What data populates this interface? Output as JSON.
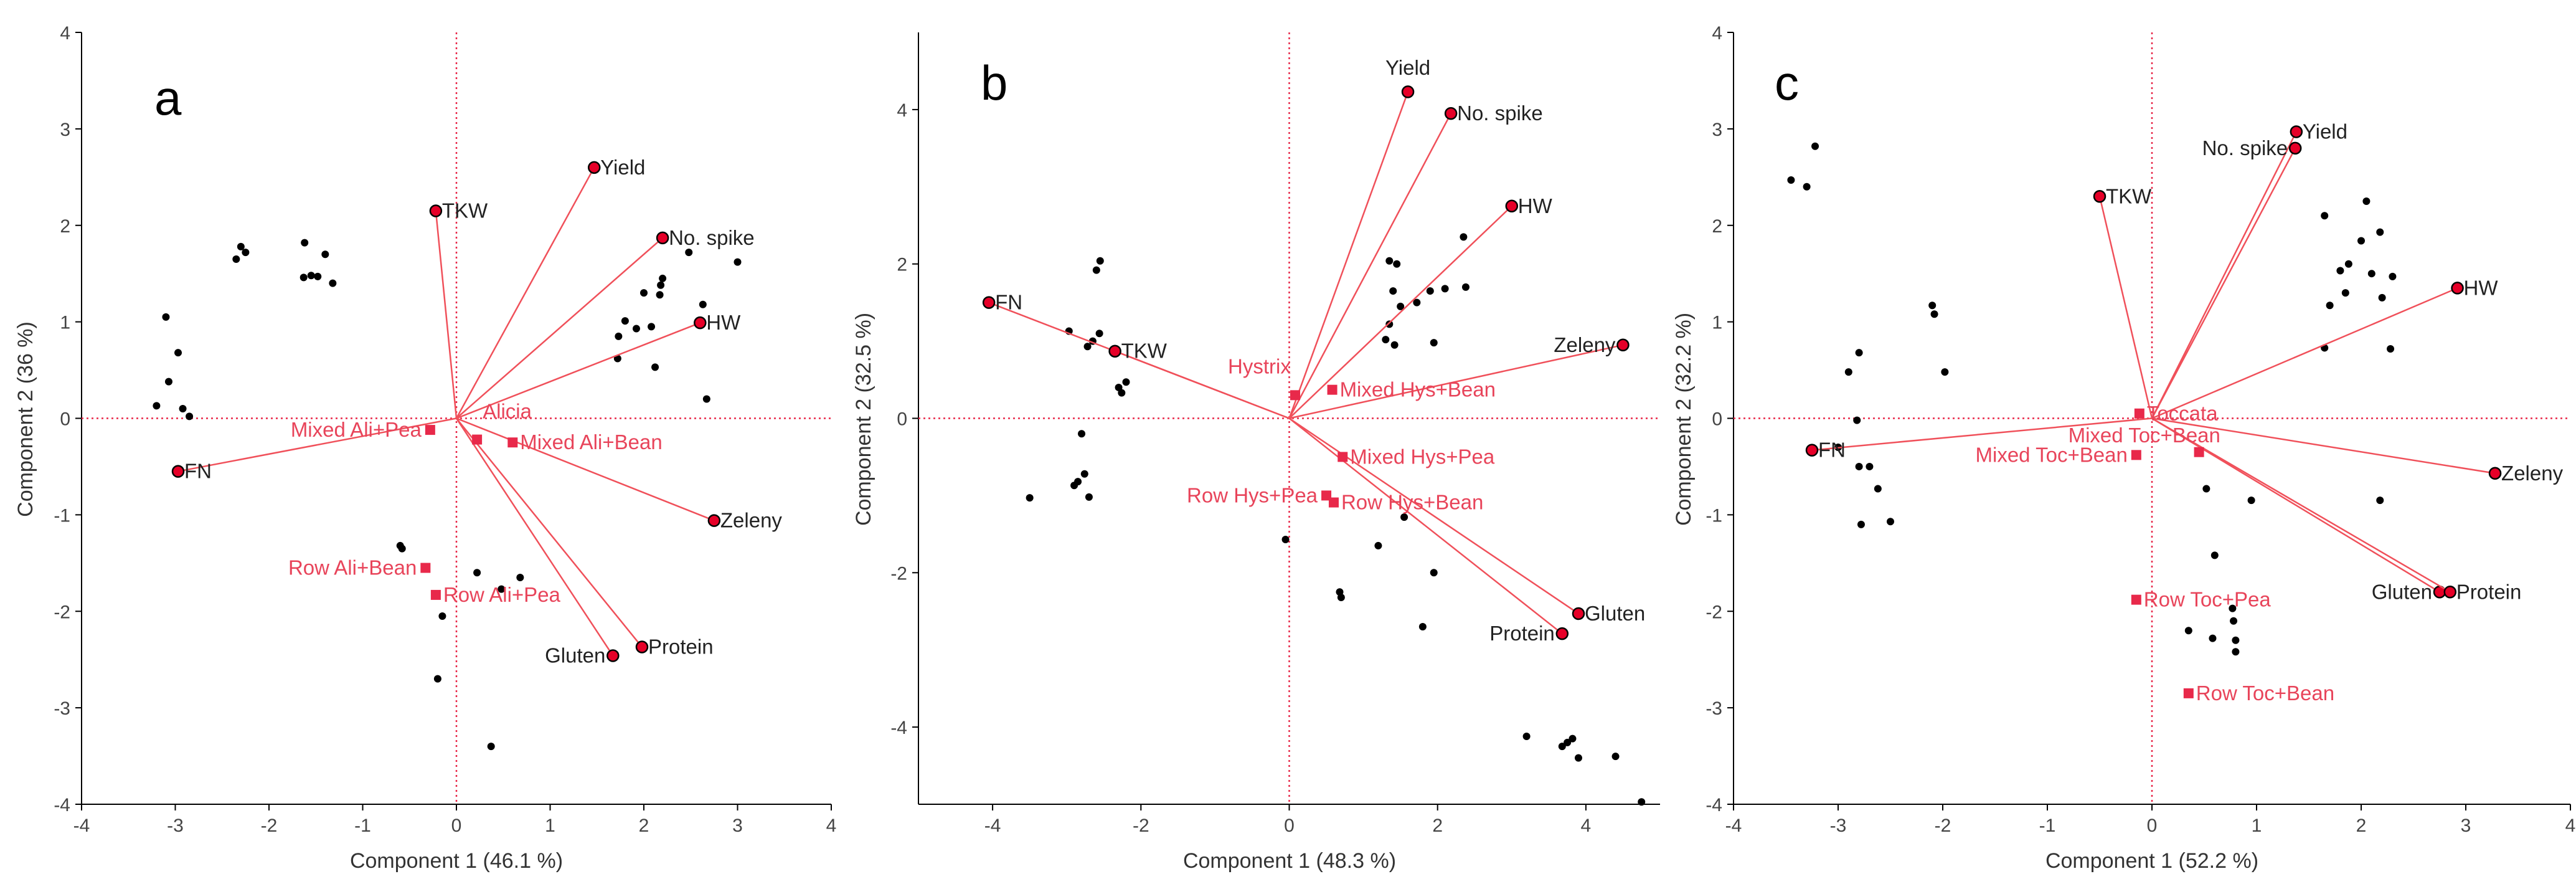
{
  "figure": {
    "panel_count": 3
  },
  "colors": {
    "vector": "#F0505A",
    "label_red": "#E8445A",
    "treatment_marker": "#E8294A",
    "point": "#000000",
    "trait_marker_fill": "#E60028",
    "axis_line": "#000000",
    "reference_line": "#E8294A",
    "text": "#333333"
  },
  "chart_data": [
    {
      "type": "scatter",
      "panel_label": "a",
      "xlabel": "Component 1  (46.1 %)",
      "ylabel": "Component 2  (36 %)",
      "xlim": [
        -4,
        4
      ],
      "ylim": [
        -4,
        4
      ],
      "xticks": [
        -4,
        -3,
        -2,
        -1,
        0,
        1,
        2,
        3,
        4
      ],
      "yticks": [
        -4,
        -3,
        -2,
        -1,
        0,
        1,
        2,
        3,
        4
      ],
      "xtick_labels": [
        "-4",
        "-3",
        "-2",
        "-1",
        "0",
        "1",
        "2",
        "3",
        "4"
      ],
      "ytick_labels": [
        "-4",
        "-3",
        "-2",
        "-1",
        "0",
        "1",
        "2",
        "3",
        "4"
      ],
      "reference_lines": {
        "x": 0,
        "y": 0
      },
      "traits": [
        {
          "name": "Yield",
          "x": 1.47,
          "y": 2.6,
          "anchor": "start"
        },
        {
          "name": "TKW",
          "x": -0.22,
          "y": 2.15,
          "anchor": "start"
        },
        {
          "name": "No. spike",
          "x": 2.2,
          "y": 1.87,
          "anchor": "start"
        },
        {
          "name": "HW",
          "x": 2.6,
          "y": 0.99,
          "anchor": "start"
        },
        {
          "name": "FN",
          "x": -2.97,
          "y": -0.55,
          "anchor": "start"
        },
        {
          "name": "Zeleny",
          "x": 2.75,
          "y": -1.06,
          "anchor": "start"
        },
        {
          "name": "Protein",
          "x": 1.98,
          "y": -2.37,
          "anchor": "start"
        },
        {
          "name": "Gluten",
          "x": 1.67,
          "y": -2.46,
          "anchor": "end"
        }
      ],
      "treatments": [
        {
          "name": "Mixed Ali+Pea",
          "x": -0.28,
          "y": -0.12,
          "anchor": "end"
        },
        {
          "name": "Alicia",
          "x": 0.22,
          "y": -0.22,
          "anchor": "start",
          "label_dx": 0.06,
          "label_dy": 0.22
        },
        {
          "name": "Mixed Ali+Bean",
          "x": 0.6,
          "y": -0.25,
          "anchor": "start"
        },
        {
          "name": "Row Ali+Bean",
          "x": -0.33,
          "y": -1.55,
          "anchor": "end"
        },
        {
          "name": "Row Ali+Pea",
          "x": -0.22,
          "y": -1.83,
          "anchor": "start"
        }
      ],
      "points": [
        [
          -3.1,
          1.05
        ],
        [
          -3.07,
          0.38
        ],
        [
          -2.97,
          0.68
        ],
        [
          -3.2,
          0.13
        ],
        [
          -2.92,
          0.1
        ],
        [
          -2.85,
          0.02
        ],
        [
          -2.35,
          1.65
        ],
        [
          -2.3,
          1.78
        ],
        [
          -2.25,
          1.72
        ],
        [
          -1.62,
          1.82
        ],
        [
          -1.63,
          1.46
        ],
        [
          -1.55,
          1.48
        ],
        [
          -1.48,
          1.47
        ],
        [
          -1.4,
          1.7
        ],
        [
          -1.32,
          1.4
        ],
        [
          1.72,
          0.62
        ],
        [
          1.73,
          0.85
        ],
        [
          1.8,
          1.01
        ],
        [
          1.92,
          0.93
        ],
        [
          2.0,
          1.3
        ],
        [
          2.08,
          0.95
        ],
        [
          2.12,
          0.53
        ],
        [
          2.17,
          1.28
        ],
        [
          2.18,
          1.38
        ],
        [
          2.2,
          1.45
        ],
        [
          2.48,
          1.72
        ],
        [
          2.63,
          1.18
        ],
        [
          2.67,
          0.2
        ],
        [
          3.0,
          1.62
        ],
        [
          -0.58,
          -1.35
        ],
        [
          -0.6,
          -1.32
        ],
        [
          -0.15,
          -2.05
        ],
        [
          0.22,
          -1.6
        ],
        [
          0.48,
          -1.77
        ],
        [
          0.68,
          -1.65
        ],
        [
          -0.2,
          -2.7
        ],
        [
          0.37,
          -3.4
        ]
      ]
    },
    {
      "type": "scatter",
      "panel_label": "b",
      "xlabel": "Component 1  (48.3 %)",
      "ylabel": "Component 2  (32.5 %)",
      "xlim": [
        -5,
        5
      ],
      "ylim": [
        -5,
        5
      ],
      "xticks": [
        -4,
        -2,
        0,
        2,
        4
      ],
      "yticks": [
        -4,
        -2,
        0,
        2,
        4
      ],
      "xtick_labels": [
        "-4",
        "-2",
        "0",
        "2",
        "4"
      ],
      "ytick_labels": [
        "-4",
        "-2",
        "0",
        "2",
        "4"
      ],
      "reference_lines": {
        "x": 0,
        "y": 0
      },
      "traits": [
        {
          "name": "Yield",
          "x": 1.6,
          "y": 4.23,
          "anchor": "middle",
          "label_dx": 0,
          "label_dy": 0.22
        },
        {
          "name": "No. spike",
          "x": 2.18,
          "y": 3.95,
          "anchor": "start"
        },
        {
          "name": "HW",
          "x": 3.0,
          "y": 2.75,
          "anchor": "start"
        },
        {
          "name": "FN",
          "x": -4.05,
          "y": 1.5,
          "anchor": "start"
        },
        {
          "name": "TKW",
          "x": -2.35,
          "y": 0.87,
          "anchor": "start"
        },
        {
          "name": "Zeleny",
          "x": 4.5,
          "y": 0.95,
          "anchor": "end"
        },
        {
          "name": "Gluten",
          "x": 3.9,
          "y": -2.53,
          "anchor": "start"
        },
        {
          "name": "Protein",
          "x": 3.68,
          "y": -2.79,
          "anchor": "end"
        }
      ],
      "treatments": [
        {
          "name": "Hystrix",
          "x": 0.08,
          "y": 0.3,
          "anchor": "end",
          "label_dx": -0.06,
          "label_dy": 0.28
        },
        {
          "name": "Mixed Hys+Bean",
          "x": 0.58,
          "y": 0.37,
          "anchor": "start"
        },
        {
          "name": "Mixed Hys+Pea",
          "x": 0.72,
          "y": -0.5,
          "anchor": "start"
        },
        {
          "name": "Row Hys+Pea",
          "x": 0.5,
          "y": -1.0,
          "anchor": "end"
        },
        {
          "name": "Row Hys+Bean",
          "x": 0.6,
          "y": -1.09,
          "anchor": "start"
        }
      ],
      "points": [
        [
          -3.5,
          -1.03
        ],
        [
          -2.97,
          1.13
        ],
        [
          -2.9,
          -0.87
        ],
        [
          -2.85,
          -0.82
        ],
        [
          -2.8,
          -0.2
        ],
        [
          -2.76,
          -0.72
        ],
        [
          -2.72,
          0.93
        ],
        [
          -2.7,
          -1.02
        ],
        [
          -2.65,
          1.0
        ],
        [
          -2.6,
          1.92
        ],
        [
          -2.55,
          2.04
        ],
        [
          -2.56,
          1.1
        ],
        [
          -2.3,
          0.4
        ],
        [
          -2.26,
          0.33
        ],
        [
          -2.2,
          0.47
        ],
        [
          1.35,
          2.04
        ],
        [
          1.45,
          2.0
        ],
        [
          1.4,
          1.65
        ],
        [
          1.5,
          1.45
        ],
        [
          1.35,
          1.22
        ],
        [
          1.3,
          1.02
        ],
        [
          1.42,
          0.95
        ],
        [
          1.72,
          1.5
        ],
        [
          1.9,
          1.65
        ],
        [
          1.95,
          0.98
        ],
        [
          2.1,
          1.68
        ],
        [
          2.38,
          1.7
        ],
        [
          2.35,
          2.35
        ],
        [
          -0.05,
          -1.57
        ],
        [
          0.68,
          -2.25
        ],
        [
          0.7,
          -2.32
        ],
        [
          1.2,
          -1.65
        ],
        [
          1.55,
          -1.28
        ],
        [
          1.8,
          -2.7
        ],
        [
          1.95,
          -2.0
        ],
        [
          3.2,
          -4.12
        ],
        [
          3.68,
          -4.25
        ],
        [
          3.75,
          -4.2
        ],
        [
          3.82,
          -4.15
        ],
        [
          3.9,
          -4.4
        ],
        [
          4.4,
          -4.38
        ],
        [
          4.75,
          -4.97
        ]
      ]
    },
    {
      "type": "scatter",
      "panel_label": "c",
      "xlabel": "Component 1  (52.2 %)",
      "ylabel": "Component 2  (32.2 %)",
      "xlim": [
        -4,
        4
      ],
      "ylim": [
        -4,
        4
      ],
      "xticks": [
        -4,
        -3,
        -2,
        -1,
        0,
        1,
        2,
        3,
        4
      ],
      "yticks": [
        -4,
        -3,
        -2,
        -1,
        0,
        1,
        2,
        3,
        4
      ],
      "xtick_labels": [
        "-4",
        "-3",
        "-2",
        "-1",
        "0",
        "1",
        "2",
        "3",
        "4"
      ],
      "ytick_labels": [
        "-4",
        "-3",
        "-2",
        "-1",
        "0",
        "1",
        "2",
        "3",
        "4"
      ],
      "reference_lines": {
        "x": 0,
        "y": 0
      },
      "traits": [
        {
          "name": "Yield",
          "x": 1.38,
          "y": 2.97,
          "anchor": "start"
        },
        {
          "name": "No. spike",
          "x": 1.37,
          "y": 2.8,
          "anchor": "end"
        },
        {
          "name": "TKW",
          "x": -0.5,
          "y": 2.3,
          "anchor": "start"
        },
        {
          "name": "HW",
          "x": 2.92,
          "y": 1.35,
          "anchor": "start"
        },
        {
          "name": "FN",
          "x": -3.25,
          "y": -0.33,
          "anchor": "start"
        },
        {
          "name": "Zeleny",
          "x": 3.28,
          "y": -0.57,
          "anchor": "start"
        },
        {
          "name": "Gluten",
          "x": 2.75,
          "y": -1.8,
          "anchor": "end"
        },
        {
          "name": "Protein",
          "x": 2.85,
          "y": -1.8,
          "anchor": "start"
        }
      ],
      "treatments": [
        {
          "name": "Toccata",
          "x": -0.12,
          "y": 0.05,
          "anchor": "start"
        },
        {
          "name": "Mixed Toc+Bean",
          "x": 0.45,
          "y": -0.35,
          "anchor": "start",
          "label_dx": -1.25,
          "label_dy": 0.1
        },
        {
          "name": "Mixed Toc+Bean",
          "x": -0.15,
          "y": -0.38,
          "anchor": "end"
        },
        {
          "name": "Row Toc+Pea",
          "x": -0.15,
          "y": -1.88,
          "anchor": "start"
        },
        {
          "name": "Row Toc+Bean",
          "x": 0.35,
          "y": -2.85,
          "anchor": "start"
        }
      ],
      "points": [
        [
          -3.45,
          2.47
        ],
        [
          -3.3,
          2.4
        ],
        [
          -3.22,
          2.82
        ],
        [
          -2.9,
          0.48
        ],
        [
          -2.8,
          0.68
        ],
        [
          -2.82,
          -0.02
        ],
        [
          -2.8,
          -0.5
        ],
        [
          -2.78,
          -1.1
        ],
        [
          -2.7,
          -0.5
        ],
        [
          -2.62,
          -0.73
        ],
        [
          -2.5,
          -1.07
        ],
        [
          -3.0,
          -0.3
        ],
        [
          -2.1,
          1.17
        ],
        [
          -2.08,
          1.08
        ],
        [
          -1.98,
          0.48
        ],
        [
          1.65,
          2.1
        ],
        [
          1.65,
          0.73
        ],
        [
          1.7,
          1.17
        ],
        [
          1.8,
          1.53
        ],
        [
          1.85,
          1.3
        ],
        [
          1.88,
          1.6
        ],
        [
          2.0,
          1.84
        ],
        [
          2.05,
          2.25
        ],
        [
          2.1,
          1.5
        ],
        [
          2.18,
          1.93
        ],
        [
          2.2,
          1.25
        ],
        [
          2.3,
          1.47
        ],
        [
          2.28,
          0.72
        ],
        [
          2.18,
          -0.85
        ],
        [
          0.52,
          -0.73
        ],
        [
          0.6,
          -1.42
        ],
        [
          0.95,
          -0.85
        ],
        [
          0.35,
          -2.2
        ],
        [
          0.58,
          -2.28
        ],
        [
          0.78,
          -2.1
        ],
        [
          0.8,
          -2.3
        ],
        [
          0.8,
          -2.42
        ],
        [
          0.77,
          -1.97
        ]
      ]
    }
  ]
}
